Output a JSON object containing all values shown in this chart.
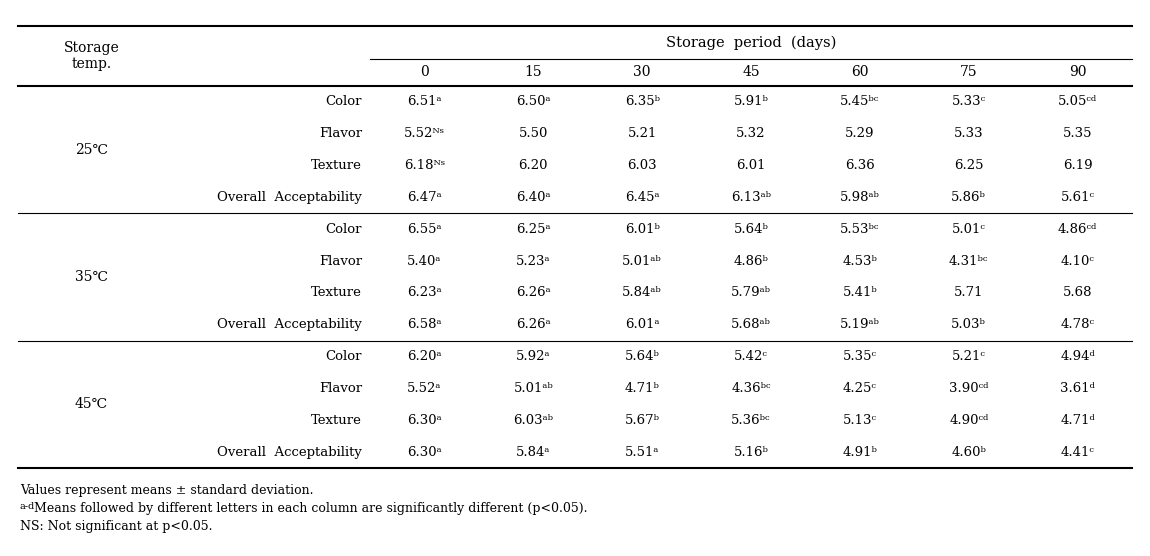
{
  "days": [
    "0",
    "15",
    "30",
    "45",
    "60",
    "75",
    "90"
  ],
  "rows": [
    {
      "temp": "25℃",
      "attribute": "Color",
      "values": [
        "6.51ᵃ",
        "6.50ᵃ",
        "6.35ᵇ",
        "5.91ᵇ",
        "5.45ᵇᶜ",
        "5.33ᶜ",
        "5.05ᶜᵈ"
      ]
    },
    {
      "temp": "",
      "attribute": "Flavor",
      "values": [
        "5.52ᴺˢ",
        "5.50",
        "5.21",
        "5.32",
        "5.29",
        "5.33",
        "5.35"
      ]
    },
    {
      "temp": "",
      "attribute": "Texture",
      "values": [
        "6.18ᴺˢ",
        "6.20",
        "6.03",
        "6.01",
        "6.36",
        "6.25",
        "6.19"
      ]
    },
    {
      "temp": "",
      "attribute": "Overall  Acceptability",
      "values": [
        "6.47ᵃ",
        "6.40ᵃ",
        "6.45ᵃ",
        "6.13ᵃᵇ",
        "5.98ᵃᵇ",
        "5.86ᵇ",
        "5.61ᶜ"
      ]
    },
    {
      "temp": "35℃",
      "attribute": "Color",
      "values": [
        "6.55ᵃ",
        "6.25ᵃ",
        "6.01ᵇ",
        "5.64ᵇ",
        "5.53ᵇᶜ",
        "5.01ᶜ",
        "4.86ᶜᵈ"
      ]
    },
    {
      "temp": "",
      "attribute": "Flavor",
      "values": [
        "5.40ᵃ",
        "5.23ᵃ",
        "5.01ᵃᵇ",
        "4.86ᵇ",
        "4.53ᵇ",
        "4.31ᵇᶜ",
        "4.10ᶜ"
      ]
    },
    {
      "temp": "",
      "attribute": "Texture",
      "values": [
        "6.23ᵃ",
        "6.26ᵃ",
        "5.84ᵃᵇ",
        "5.79ᵃᵇ",
        "5.41ᵇ",
        "5.71",
        "5.68"
      ]
    },
    {
      "temp": "",
      "attribute": "Overall  Acceptability",
      "values": [
        "6.58ᵃ",
        "6.26ᵃ",
        "6.01ᵃ",
        "5.68ᵃᵇ",
        "5.19ᵃᵇ",
        "5.03ᵇ",
        "4.78ᶜ"
      ]
    },
    {
      "temp": "45℃",
      "attribute": "Color",
      "values": [
        "6.20ᵃ",
        "5.92ᵃ",
        "5.64ᵇ",
        "5.42ᶜ",
        "5.35ᶜ",
        "5.21ᶜ",
        "4.94ᵈ"
      ]
    },
    {
      "temp": "",
      "attribute": "Flavor",
      "values": [
        "5.52ᵃ",
        "5.01ᵃᵇ",
        "4.71ᵇ",
        "4.36ᵇᶜ",
        "4.25ᶜ",
        "3.90ᶜᵈ",
        "3.61ᵈ"
      ]
    },
    {
      "temp": "",
      "attribute": "Texture",
      "values": [
        "6.30ᵃ",
        "6.03ᵃᵇ",
        "5.67ᵇ",
        "5.36ᵇᶜ",
        "5.13ᶜ",
        "4.90ᶜᵈ",
        "4.71ᵈ"
      ]
    },
    {
      "temp": "",
      "attribute": "Overall  Acceptability",
      "values": [
        "6.30ᵃ",
        "5.84ᵃ",
        "5.51ᵃ",
        "5.16ᵇ",
        "4.91ᵇ",
        "4.60ᵇ",
        "4.41ᶜ"
      ]
    }
  ],
  "footnote1": "Values represent means ± standard deviation.",
  "footnote2_pre": "a-d",
  "footnote2_post": "Means followed by different letters in each column are significantly different (p<0.05).",
  "footnote3": "NS: Not significant at p<0.05.",
  "separator_after": [
    3,
    7
  ],
  "temp_rows": [
    0,
    4,
    8
  ],
  "bg_color": "#ffffff",
  "text_color": "#000000",
  "line_color": "#000000",
  "font_size": 10.0,
  "small_font_size": 9.0,
  "footnote_font_size": 9.0
}
